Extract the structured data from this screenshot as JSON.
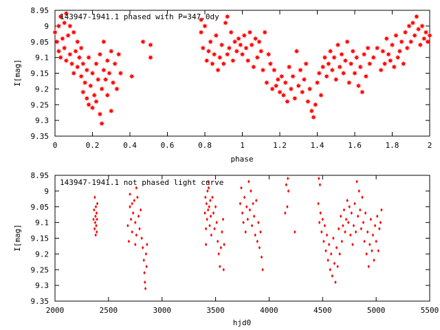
{
  "chart_data": [
    {
      "type": "scatter",
      "title": "143947-1941.1 phased with P=347.0d",
      "title_suffix": "y",
      "xlabel": "phase",
      "ylabel": "I[mag]",
      "xlim": [
        0,
        2
      ],
      "ylim": [
        8.95,
        9.35
      ],
      "y_inverted": true,
      "x_ticks": [
        "0",
        "0.2",
        "0.4",
        "0.6",
        "0.8",
        "1",
        "1.2",
        "1.4",
        "1.6",
        "1.8",
        "2"
      ],
      "y_ticks": [
        "8.95",
        "9",
        "9.05",
        "9.1",
        "9.15",
        "9.2",
        "9.25",
        "9.3",
        "9.35"
      ],
      "marker": "star",
      "color": "#ff0000",
      "points": [
        [
          0.0,
          9.02
        ],
        [
          0.01,
          9.05
        ],
        [
          0.02,
          9.0
        ],
        [
          0.02,
          9.08
        ],
        [
          0.03,
          8.97
        ],
        [
          0.03,
          9.1
        ],
        [
          0.04,
          9.04
        ],
        [
          0.05,
          8.99
        ],
        [
          0.05,
          9.07
        ],
        [
          0.06,
          8.96
        ],
        [
          0.06,
          9.11
        ],
        [
          0.07,
          9.03
        ],
        [
          0.08,
          9.0
        ],
        [
          0.08,
          9.09
        ],
        [
          0.09,
          9.12
        ],
        [
          0.1,
          9.02
        ],
        [
          0.1,
          9.15
        ],
        [
          0.11,
          9.08
        ],
        [
          0.12,
          9.05
        ],
        [
          0.12,
          9.13
        ],
        [
          0.13,
          9.1
        ],
        [
          0.14,
          9.16
        ],
        [
          0.14,
          9.07
        ],
        [
          0.15,
          9.21
        ],
        [
          0.15,
          9.12
        ],
        [
          0.16,
          9.18
        ],
        [
          0.17,
          9.23
        ],
        [
          0.17,
          9.14
        ],
        [
          0.18,
          9.1
        ],
        [
          0.18,
          9.25
        ],
        [
          0.19,
          9.19
        ],
        [
          0.2,
          9.26
        ],
        [
          0.2,
          9.15
        ],
        [
          0.21,
          9.22
        ],
        [
          0.22,
          9.12
        ],
        [
          0.22,
          9.24
        ],
        [
          0.23,
          9.17
        ],
        [
          0.24,
          9.28
        ],
        [
          0.24,
          9.09
        ],
        [
          0.25,
          9.31
        ],
        [
          0.25,
          9.2
        ],
        [
          0.26,
          9.14
        ],
        [
          0.26,
          9.05
        ],
        [
          0.27,
          9.17
        ],
        [
          0.28,
          9.11
        ],
        [
          0.28,
          9.22
        ],
        [
          0.29,
          9.15
        ],
        [
          0.3,
          9.27
        ],
        [
          0.3,
          9.08
        ],
        [
          0.31,
          9.18
        ],
        [
          0.32,
          9.12
        ],
        [
          0.33,
          9.2
        ],
        [
          0.34,
          9.09
        ],
        [
          0.35,
          9.15
        ],
        [
          0.41,
          9.16
        ],
        [
          0.47,
          9.05
        ],
        [
          0.51,
          9.06
        ],
        [
          0.51,
          9.1
        ],
        [
          0.78,
          8.98
        ],
        [
          0.78,
          9.02
        ],
        [
          0.79,
          9.07
        ],
        [
          0.8,
          9.0
        ],
        [
          0.81,
          9.11
        ],
        [
          0.82,
          9.08
        ],
        [
          0.83,
          9.05
        ],
        [
          0.84,
          9.12
        ],
        [
          0.85,
          9.09
        ],
        [
          0.86,
          9.03
        ],
        [
          0.87,
          9.14
        ],
        [
          0.88,
          9.1
        ],
        [
          0.89,
          9.06
        ],
        [
          0.9,
          9.12
        ],
        [
          0.91,
          8.99
        ],
        [
          0.92,
          9.09
        ],
        [
          0.92,
          8.97
        ],
        [
          0.93,
          9.07
        ],
        [
          0.94,
          9.02
        ],
        [
          0.95,
          9.11
        ],
        [
          0.96,
          9.05
        ],
        [
          0.97,
          9.08
        ],
        [
          0.98,
          9.04
        ],
        [
          0.99,
          9.06
        ],
        [
          1.0,
          9.09
        ],
        [
          1.01,
          9.03
        ],
        [
          1.02,
          9.07
        ],
        [
          1.03,
          9.11
        ],
        [
          1.04,
          9.02
        ],
        [
          1.05,
          9.06
        ],
        [
          1.06,
          9.13
        ],
        [
          1.07,
          9.04
        ],
        [
          1.08,
          9.1
        ],
        [
          1.09,
          9.05
        ],
        [
          1.1,
          9.08
        ],
        [
          1.11,
          9.14
        ],
        [
          1.12,
          9.02
        ],
        [
          1.13,
          9.18
        ],
        [
          1.14,
          9.09
        ],
        [
          1.15,
          9.12
        ],
        [
          1.16,
          9.2
        ],
        [
          1.17,
          9.14
        ],
        [
          1.18,
          9.19
        ],
        [
          1.19,
          9.17
        ],
        [
          1.2,
          9.21
        ],
        [
          1.21,
          9.16
        ],
        [
          1.22,
          9.22
        ],
        [
          1.23,
          9.18
        ],
        [
          1.24,
          9.24
        ],
        [
          1.25,
          9.13
        ],
        [
          1.26,
          9.2
        ],
        [
          1.27,
          9.16
        ],
        [
          1.28,
          9.23
        ],
        [
          1.29,
          9.08
        ],
        [
          1.3,
          9.19
        ],
        [
          1.31,
          9.14
        ],
        [
          1.32,
          9.21
        ],
        [
          1.33,
          9.17
        ],
        [
          1.34,
          9.12
        ],
        [
          1.35,
          9.24
        ],
        [
          1.36,
          9.2
        ],
        [
          1.37,
          9.27
        ],
        [
          1.38,
          9.29
        ],
        [
          1.39,
          9.25
        ],
        [
          1.4,
          9.18
        ],
        [
          1.41,
          9.15
        ],
        [
          1.42,
          9.22
        ],
        [
          1.43,
          9.13
        ],
        [
          1.44,
          9.1
        ],
        [
          1.45,
          9.16
        ],
        [
          1.46,
          9.12
        ],
        [
          1.47,
          9.08
        ],
        [
          1.48,
          9.14
        ],
        [
          1.49,
          9.1
        ],
        [
          1.5,
          9.17
        ],
        [
          1.51,
          9.06
        ],
        [
          1.52,
          9.13
        ],
        [
          1.53,
          9.09
        ],
        [
          1.54,
          9.15
        ],
        [
          1.55,
          9.11
        ],
        [
          1.56,
          9.05
        ],
        [
          1.57,
          9.18
        ],
        [
          1.58,
          9.12
        ],
        [
          1.59,
          9.08
        ],
        [
          1.6,
          9.15
        ],
        [
          1.61,
          9.1
        ],
        [
          1.62,
          9.19
        ],
        [
          1.63,
          9.13
        ],
        [
          1.64,
          9.21
        ],
        [
          1.65,
          9.09
        ],
        [
          1.66,
          9.16
        ],
        [
          1.67,
          9.07
        ],
        [
          1.68,
          9.12
        ],
        [
          1.7,
          9.1
        ],
        [
          1.72,
          9.07
        ],
        [
          1.74,
          9.14
        ],
        [
          1.75,
          9.08
        ],
        [
          1.76,
          9.12
        ],
        [
          1.77,
          9.04
        ],
        [
          1.78,
          9.09
        ],
        [
          1.79,
          9.11
        ],
        [
          1.8,
          9.06
        ],
        [
          1.81,
          9.13
        ],
        [
          1.82,
          9.03
        ],
        [
          1.83,
          9.1
        ],
        [
          1.84,
          9.08
        ],
        [
          1.85,
          9.05
        ],
        [
          1.86,
          9.12
        ],
        [
          1.87,
          9.02
        ],
        [
          1.88,
          9.07
        ],
        [
          1.89,
          9.0
        ],
        [
          1.9,
          9.05
        ],
        [
          1.91,
          8.99
        ],
        [
          1.92,
          9.03
        ],
        [
          1.93,
          8.97
        ],
        [
          1.94,
          9.01
        ],
        [
          1.95,
          9.06
        ],
        [
          1.96,
          9.0
        ],
        [
          1.97,
          9.04
        ],
        [
          1.98,
          9.02
        ],
        [
          1.99,
          9.05
        ],
        [
          2.0,
          9.03
        ]
      ]
    },
    {
      "type": "scatter",
      "title": "143947-1941.1 not phased light curve",
      "xlabel": "hjd0",
      "ylabel": "I[mag]",
      "xlim": [
        2000,
        5500
      ],
      "ylim": [
        8.95,
        9.35
      ],
      "y_inverted": true,
      "x_ticks": [
        "2000",
        "2500",
        "3000",
        "3500",
        "4000",
        "4500",
        "5000",
        "5500"
      ],
      "y_ticks": [
        "8.95",
        "9",
        "9.05",
        "9.1",
        "9.15",
        "9.2",
        "9.25",
        "9.3",
        "9.35"
      ],
      "marker": "diamond",
      "color": "#ff0000",
      "points": [
        [
          2360,
          9.09
        ],
        [
          2365,
          9.06
        ],
        [
          2370,
          9.12
        ],
        [
          2372,
          9.02
        ],
        [
          2375,
          9.1
        ],
        [
          2378,
          9.08
        ],
        [
          2380,
          9.14
        ],
        [
          2382,
          9.05
        ],
        [
          2385,
          9.11
        ],
        [
          2388,
          9.07
        ],
        [
          2390,
          9.13
        ],
        [
          2392,
          9.09
        ],
        [
          2395,
          9.04
        ],
        [
          2680,
          9.11
        ],
        [
          2690,
          9.16
        ],
        [
          2700,
          9.05
        ],
        [
          2710,
          9.09
        ],
        [
          2720,
          9.13
        ],
        [
          2730,
          9.07
        ],
        [
          2740,
          9.03
        ],
        [
          2750,
          9.1
        ],
        [
          2760,
          9.14
        ],
        [
          2770,
          9.02
        ],
        [
          2780,
          9.08
        ],
        [
          2790,
          9.12
        ],
        [
          2800,
          9.06
        ],
        [
          2810,
          9.15
        ],
        [
          2820,
          9.18
        ],
        [
          2830,
          9.22
        ],
        [
          2835,
          9.26
        ],
        [
          2840,
          9.29
        ],
        [
          2845,
          9.31
        ],
        [
          2850,
          9.2
        ],
        [
          2855,
          9.24
        ],
        [
          2860,
          9.17
        ],
        [
          2700,
          9.01
        ],
        [
          2720,
          9.04
        ],
        [
          2750,
          9.17
        ],
        [
          2760,
          8.99
        ],
        [
          3400,
          9.07
        ],
        [
          3405,
          9.02
        ],
        [
          3410,
          9.12
        ],
        [
          3415,
          9.04
        ],
        [
          3420,
          9.09
        ],
        [
          3425,
          9.0
        ],
        [
          3430,
          9.06
        ],
        [
          3435,
          8.99
        ],
        [
          3440,
          9.05
        ],
        [
          3445,
          9.11
        ],
        [
          3450,
          9.03
        ],
        [
          3455,
          9.08
        ],
        [
          3460,
          9.14
        ],
        [
          3470,
          9.02
        ],
        [
          3480,
          9.07
        ],
        [
          3490,
          9.12
        ],
        [
          3500,
          9.05
        ],
        [
          3510,
          9.1
        ],
        [
          3520,
          9.16
        ],
        [
          3530,
          9.2
        ],
        [
          3540,
          9.24
        ],
        [
          3550,
          9.18
        ],
        [
          3560,
          9.13
        ],
        [
          3570,
          9.09
        ],
        [
          3575,
          9.25
        ],
        [
          3580,
          9.17
        ],
        [
          3410,
          9.17
        ],
        [
          3430,
          8.97
        ],
        [
          3730,
          9.04
        ],
        [
          3740,
          8.99
        ],
        [
          3750,
          9.07
        ],
        [
          3760,
          9.1
        ],
        [
          3770,
          9.02
        ],
        [
          3780,
          9.13
        ],
        [
          3790,
          9.05
        ],
        [
          3800,
          9.09
        ],
        [
          3810,
          8.97
        ],
        [
          3820,
          9.06
        ],
        [
          3830,
          9.0
        ],
        [
          3840,
          9.11
        ],
        [
          3850,
          9.04
        ],
        [
          3860,
          9.08
        ],
        [
          3870,
          9.14
        ],
        [
          3880,
          9.03
        ],
        [
          3890,
          9.16
        ],
        [
          3900,
          9.1
        ],
        [
          3910,
          9.18
        ],
        [
          3920,
          9.13
        ],
        [
          3930,
          9.21
        ],
        [
          3940,
          9.25
        ],
        [
          4150,
          9.07
        ],
        [
          4160,
          8.98
        ],
        [
          4170,
          9.05
        ],
        [
          4175,
          8.96
        ],
        [
          4180,
          9.0
        ],
        [
          4240,
          9.13
        ],
        [
          4460,
          9.04
        ],
        [
          4465,
          8.96
        ],
        [
          4470,
          9.1
        ],
        [
          4475,
          8.98
        ],
        [
          4480,
          9.07
        ],
        [
          4490,
          9.13
        ],
        [
          4500,
          9.09
        ],
        [
          4510,
          9.16
        ],
        [
          4520,
          9.11
        ],
        [
          4530,
          9.19
        ],
        [
          4540,
          9.14
        ],
        [
          4550,
          9.22
        ],
        [
          4560,
          9.17
        ],
        [
          4570,
          9.25
        ],
        [
          4580,
          9.2
        ],
        [
          4590,
          9.27
        ],
        [
          4600,
          9.15
        ],
        [
          4610,
          9.23
        ],
        [
          4620,
          9.29
        ],
        [
          4630,
          9.18
        ],
        [
          4640,
          9.24
        ],
        [
          4650,
          9.12
        ],
        [
          4660,
          9.2
        ],
        [
          4670,
          9.08
        ],
        [
          4680,
          9.16
        ],
        [
          4690,
          9.11
        ],
        [
          4700,
          9.06
        ],
        [
          4710,
          9.13
        ],
        [
          4720,
          9.09
        ],
        [
          4730,
          9.03
        ],
        [
          4740,
          9.1
        ],
        [
          4750,
          9.05
        ],
        [
          4760,
          9.14
        ],
        [
          4770,
          9.07
        ],
        [
          4780,
          9.17
        ],
        [
          4790,
          9.11
        ],
        [
          4800,
          9.04
        ],
        [
          4810,
          9.13
        ],
        [
          4820,
          8.97
        ],
        [
          4830,
          9.08
        ],
        [
          4840,
          9.0
        ],
        [
          4850,
          9.06
        ],
        [
          4860,
          9.12
        ],
        [
          4870,
          9.02
        ],
        [
          4880,
          9.1
        ],
        [
          4890,
          9.16
        ],
        [
          4900,
          9.07
        ],
        [
          4910,
          9.2
        ],
        [
          4920,
          9.13
        ],
        [
          4930,
          9.24
        ],
        [
          4940,
          9.17
        ],
        [
          4950,
          9.09
        ],
        [
          4960,
          9.19
        ],
        [
          4970,
          9.14
        ],
        [
          4980,
          9.22
        ],
        [
          4990,
          9.11
        ],
        [
          5000,
          9.16
        ],
        [
          5010,
          9.08
        ],
        [
          5020,
          9.19
        ],
        [
          5030,
          9.12
        ],
        [
          5040,
          9.1
        ],
        [
          5050,
          9.06
        ]
      ]
    }
  ]
}
